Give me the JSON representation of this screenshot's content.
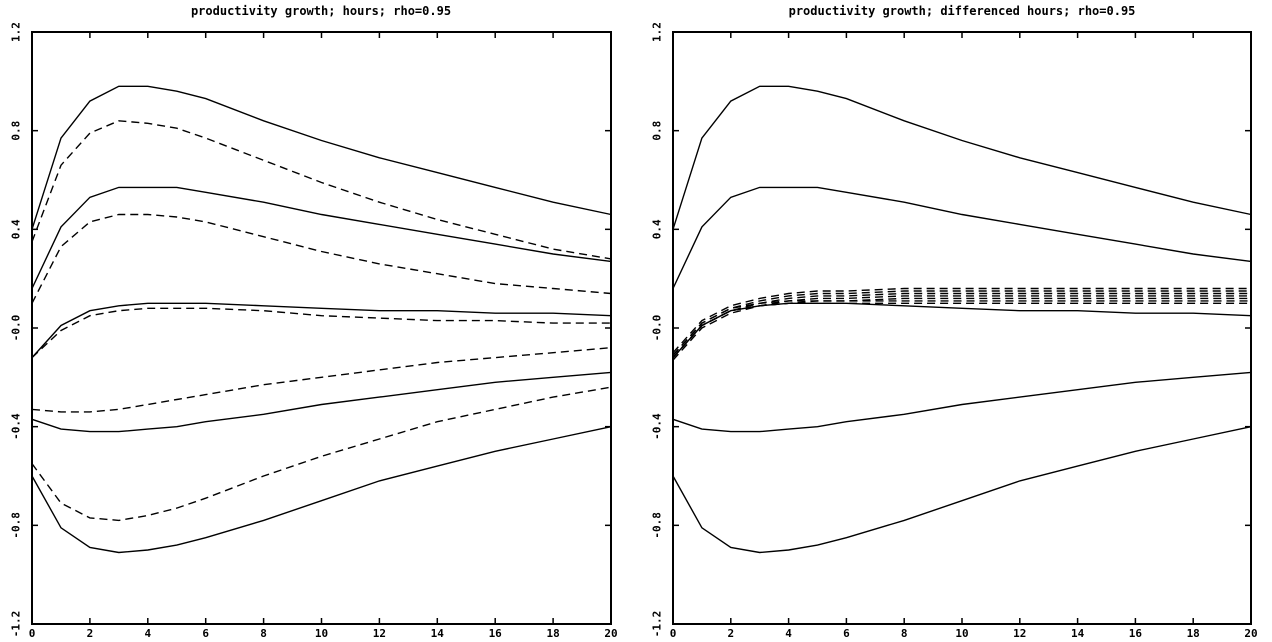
{
  "chart_data": [
    {
      "type": "line",
      "title": "productivity growth; hours; rho=0.95",
      "xlabel": "",
      "ylabel": "",
      "xlim": [
        0,
        20
      ],
      "ylim": [
        -1.2,
        1.2
      ],
      "xticks": [
        0,
        2,
        4,
        6,
        8,
        10,
        12,
        14,
        16,
        18,
        20
      ],
      "xtick_labels": [
        "0",
        "2",
        "4",
        "6",
        "8",
        "10",
        "12",
        "14",
        "16",
        "18",
        "20"
      ],
      "yticks": [
        -1.2,
        -0.8,
        -0.4,
        0.0,
        0.4,
        0.8,
        1.2
      ],
      "ytick_labels": [
        "-1.2",
        "-0.8",
        "-0.4",
        "-0.0",
        "0.4",
        "0.8",
        "1.2"
      ],
      "grid": false,
      "x": [
        0,
        1,
        2,
        3,
        4,
        5,
        6,
        8,
        10,
        12,
        14,
        16,
        18,
        20
      ],
      "series": [
        {
          "style": "solid",
          "values": [
            0.4,
            0.77,
            0.92,
            0.98,
            0.98,
            0.96,
            0.93,
            0.84,
            0.76,
            0.69,
            0.63,
            0.57,
            0.51,
            0.46
          ]
        },
        {
          "style": "solid",
          "values": [
            0.16,
            0.41,
            0.53,
            0.57,
            0.57,
            0.57,
            0.55,
            0.51,
            0.46,
            0.42,
            0.38,
            0.34,
            0.3,
            0.27
          ]
        },
        {
          "style": "solid",
          "values": [
            -0.12,
            0.01,
            0.07,
            0.09,
            0.1,
            0.1,
            0.1,
            0.09,
            0.08,
            0.07,
            0.07,
            0.06,
            0.06,
            0.05
          ]
        },
        {
          "style": "solid",
          "values": [
            -0.37,
            -0.41,
            -0.42,
            -0.42,
            -0.41,
            -0.4,
            -0.38,
            -0.35,
            -0.31,
            -0.28,
            -0.25,
            -0.22,
            -0.2,
            -0.18
          ]
        },
        {
          "style": "solid",
          "values": [
            -0.6,
            -0.81,
            -0.89,
            -0.91,
            -0.9,
            -0.88,
            -0.85,
            -0.78,
            -0.7,
            -0.62,
            -0.56,
            -0.5,
            -0.45,
            -0.4
          ]
        },
        {
          "style": "dashed",
          "values": [
            0.35,
            0.66,
            0.79,
            0.84,
            0.83,
            0.81,
            0.77,
            0.68,
            0.59,
            0.51,
            0.44,
            0.38,
            0.32,
            0.28
          ]
        },
        {
          "style": "dashed",
          "values": [
            0.1,
            0.33,
            0.43,
            0.46,
            0.46,
            0.45,
            0.43,
            0.37,
            0.31,
            0.26,
            0.22,
            0.18,
            0.16,
            0.14
          ]
        },
        {
          "style": "dashed",
          "values": [
            -0.12,
            -0.01,
            0.05,
            0.07,
            0.08,
            0.08,
            0.08,
            0.07,
            0.05,
            0.04,
            0.03,
            0.03,
            0.02,
            0.02
          ]
        },
        {
          "style": "dashed",
          "values": [
            -0.33,
            -0.34,
            -0.34,
            -0.33,
            -0.31,
            -0.29,
            -0.27,
            -0.23,
            -0.2,
            -0.17,
            -0.14,
            -0.12,
            -0.1,
            -0.08
          ]
        },
        {
          "style": "dashed",
          "values": [
            -0.55,
            -0.71,
            -0.77,
            -0.78,
            -0.76,
            -0.73,
            -0.69,
            -0.6,
            -0.52,
            -0.45,
            -0.38,
            -0.33,
            -0.28,
            -0.24
          ]
        }
      ]
    },
    {
      "type": "line",
      "title": "productivity growth; differenced hours; rho=0.95",
      "xlabel": "",
      "ylabel": "",
      "xlim": [
        0,
        20
      ],
      "ylim": [
        -1.2,
        1.2
      ],
      "xticks": [
        0,
        2,
        4,
        6,
        8,
        10,
        12,
        14,
        16,
        18,
        20
      ],
      "xtick_labels": [
        "0",
        "2",
        "4",
        "6",
        "8",
        "10",
        "12",
        "14",
        "16",
        "18",
        "20"
      ],
      "yticks": [
        -1.2,
        -0.8,
        -0.4,
        0.0,
        0.4,
        0.8,
        1.2
      ],
      "ytick_labels": [
        "-1.2",
        "-0.8",
        "-0.4",
        "-0.0",
        "0.4",
        "0.8",
        "1.2"
      ],
      "grid": false,
      "x": [
        0,
        1,
        2,
        3,
        4,
        5,
        6,
        8,
        10,
        12,
        14,
        16,
        18,
        20
      ],
      "series": [
        {
          "style": "solid",
          "values": [
            0.4,
            0.77,
            0.92,
            0.98,
            0.98,
            0.96,
            0.93,
            0.84,
            0.76,
            0.69,
            0.63,
            0.57,
            0.51,
            0.46
          ]
        },
        {
          "style": "solid",
          "values": [
            0.16,
            0.41,
            0.53,
            0.57,
            0.57,
            0.57,
            0.55,
            0.51,
            0.46,
            0.42,
            0.38,
            0.34,
            0.3,
            0.27
          ]
        },
        {
          "style": "solid",
          "values": [
            -0.12,
            0.01,
            0.07,
            0.09,
            0.1,
            0.1,
            0.1,
            0.09,
            0.08,
            0.07,
            0.07,
            0.06,
            0.06,
            0.05
          ]
        },
        {
          "style": "solid",
          "values": [
            -0.37,
            -0.41,
            -0.42,
            -0.42,
            -0.41,
            -0.4,
            -0.38,
            -0.35,
            -0.31,
            -0.28,
            -0.25,
            -0.22,
            -0.2,
            -0.18
          ]
        },
        {
          "style": "solid",
          "values": [
            -0.6,
            -0.81,
            -0.89,
            -0.91,
            -0.9,
            -0.88,
            -0.85,
            -0.78,
            -0.7,
            -0.62,
            -0.56,
            -0.5,
            -0.45,
            -0.4
          ]
        },
        {
          "style": "dashed",
          "values": [
            -0.1,
            0.03,
            0.09,
            0.12,
            0.14,
            0.15,
            0.15,
            0.16,
            0.16,
            0.16,
            0.16,
            0.16,
            0.16,
            0.16
          ]
        },
        {
          "style": "dashed",
          "values": [
            -0.11,
            0.02,
            0.08,
            0.11,
            0.13,
            0.14,
            0.14,
            0.15,
            0.15,
            0.15,
            0.15,
            0.15,
            0.15,
            0.15
          ]
        },
        {
          "style": "dashed",
          "values": [
            -0.11,
            0.02,
            0.08,
            0.1,
            0.12,
            0.13,
            0.13,
            0.14,
            0.14,
            0.14,
            0.14,
            0.14,
            0.14,
            0.14
          ]
        },
        {
          "style": "dashed",
          "values": [
            -0.12,
            0.01,
            0.07,
            0.1,
            0.11,
            0.12,
            0.12,
            0.13,
            0.13,
            0.13,
            0.13,
            0.13,
            0.13,
            0.13
          ]
        },
        {
          "style": "dashed",
          "values": [
            -0.12,
            0.01,
            0.07,
            0.09,
            0.11,
            0.11,
            0.11,
            0.12,
            0.12,
            0.12,
            0.12,
            0.12,
            0.12,
            0.12
          ]
        },
        {
          "style": "dashed",
          "values": [
            -0.12,
            0.01,
            0.07,
            0.09,
            0.1,
            0.11,
            0.11,
            0.11,
            0.11,
            0.11,
            0.11,
            0.11,
            0.11,
            0.11
          ]
        },
        {
          "style": "dashed",
          "values": [
            -0.13,
            0.0,
            0.06,
            0.09,
            0.1,
            0.1,
            0.1,
            0.1,
            0.1,
            0.1,
            0.1,
            0.1,
            0.1,
            0.1
          ]
        }
      ]
    }
  ]
}
